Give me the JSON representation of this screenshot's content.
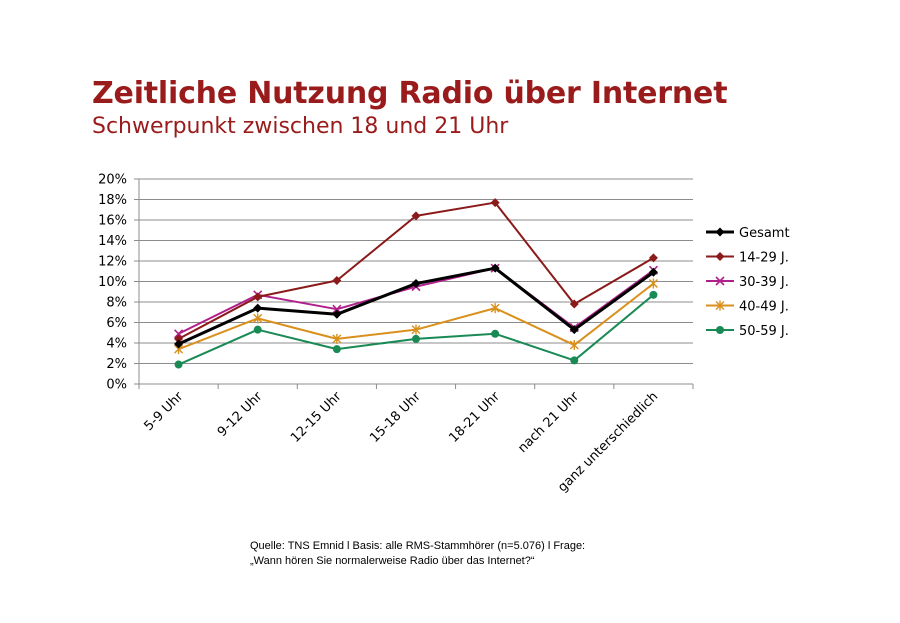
{
  "title": "Zeitliche Nutzung Radio über Internet",
  "subtitle": "Schwerpunkt zwischen 18 und 21 Uhr",
  "source": {
    "line1": "Quelle: TNS Emnid l Basis: alle RMS-Stammhörer (n=5.076) l Frage:",
    "line2": "„Wann hören Sie normalerweise Radio über das Internet?“"
  },
  "chart_data": {
    "type": "line",
    "categories": [
      "5-9 Uhr",
      "9-12 Uhr",
      "12-15 Uhr",
      "15-18 Uhr",
      "18-21 Uhr",
      "nach 21 Uhr",
      "ganz unterschiedlich"
    ],
    "y_ticks": [
      "0%",
      "2%",
      "4%",
      "6%",
      "8%",
      "10%",
      "12%",
      "14%",
      "16%",
      "18%",
      "20%"
    ],
    "ylim": [
      0,
      20
    ],
    "grid": true,
    "legend_position": "right",
    "series": [
      {
        "name": "Gesamt",
        "color": "#000000",
        "marker": "diamond",
        "values": [
          3.9,
          7.4,
          6.8,
          9.8,
          11.3,
          5.3,
          10.9
        ]
      },
      {
        "name": "14-29 J.",
        "color": "#8b1a1a",
        "marker": "diamond",
        "values": [
          4.4,
          8.5,
          10.1,
          16.4,
          17.7,
          7.8,
          12.3
        ]
      },
      {
        "name": "30-39 J.",
        "color": "#b0208c",
        "marker": "x",
        "values": [
          4.9,
          8.7,
          7.3,
          9.5,
          11.3,
          5.5,
          11.1
        ]
      },
      {
        "name": "40-49 J.",
        "color": "#d9901c",
        "marker": "star",
        "values": [
          3.4,
          6.4,
          4.4,
          5.3,
          7.4,
          3.8,
          9.8
        ]
      },
      {
        "name": "50-59 J.",
        "color": "#1a8a55",
        "marker": "circle",
        "values": [
          1.9,
          5.3,
          3.4,
          4.4,
          4.9,
          2.3,
          8.7
        ]
      }
    ]
  }
}
